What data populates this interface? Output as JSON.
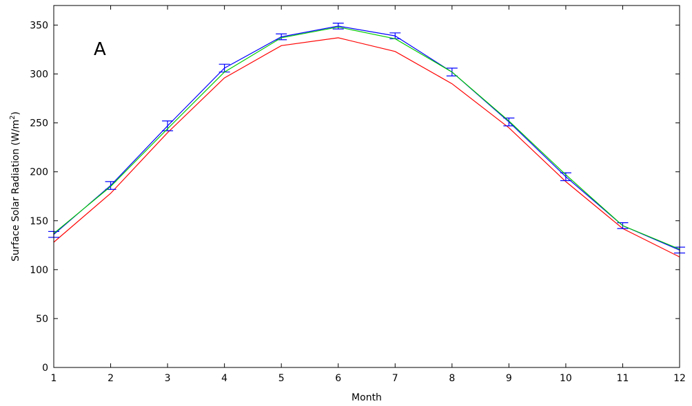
{
  "chart_data": {
    "type": "line",
    "title": "",
    "panel_label": "A",
    "xlabel": "Month",
    "ylabel_main": "Surface Solar Radiation (W/m",
    "ylabel_sup": "2",
    "ylabel_close": ")",
    "xlim": [
      1,
      12
    ],
    "ylim": [
      0,
      370
    ],
    "x_ticks": [
      1,
      2,
      3,
      4,
      5,
      6,
      7,
      8,
      9,
      10,
      11,
      12
    ],
    "y_ticks": [
      0,
      50,
      100,
      150,
      200,
      250,
      300,
      350
    ],
    "grid": false,
    "legend": "none",
    "x": [
      1,
      2,
      3,
      4,
      5,
      6,
      7,
      8,
      9,
      10,
      11,
      12
    ],
    "series": [
      {
        "color": "#ff0000",
        "values": [
          128,
          178,
          240,
          296,
          329,
          337,
          323,
          290,
          245,
          190,
          142,
          113
        ],
        "error": null
      },
      {
        "color": "#0000ff",
        "values": [
          136,
          186,
          247,
          306,
          338,
          349,
          339,
          302,
          251,
          195,
          145,
          120
        ],
        "error": [
          3,
          4,
          5,
          4,
          3,
          3,
          3,
          4,
          4,
          4,
          3,
          3
        ]
      },
      {
        "color": "#00cc00",
        "values": [
          137,
          185,
          244,
          302,
          337,
          348,
          336,
          302,
          252,
          197,
          145,
          121
        ],
        "error": null
      }
    ]
  }
}
